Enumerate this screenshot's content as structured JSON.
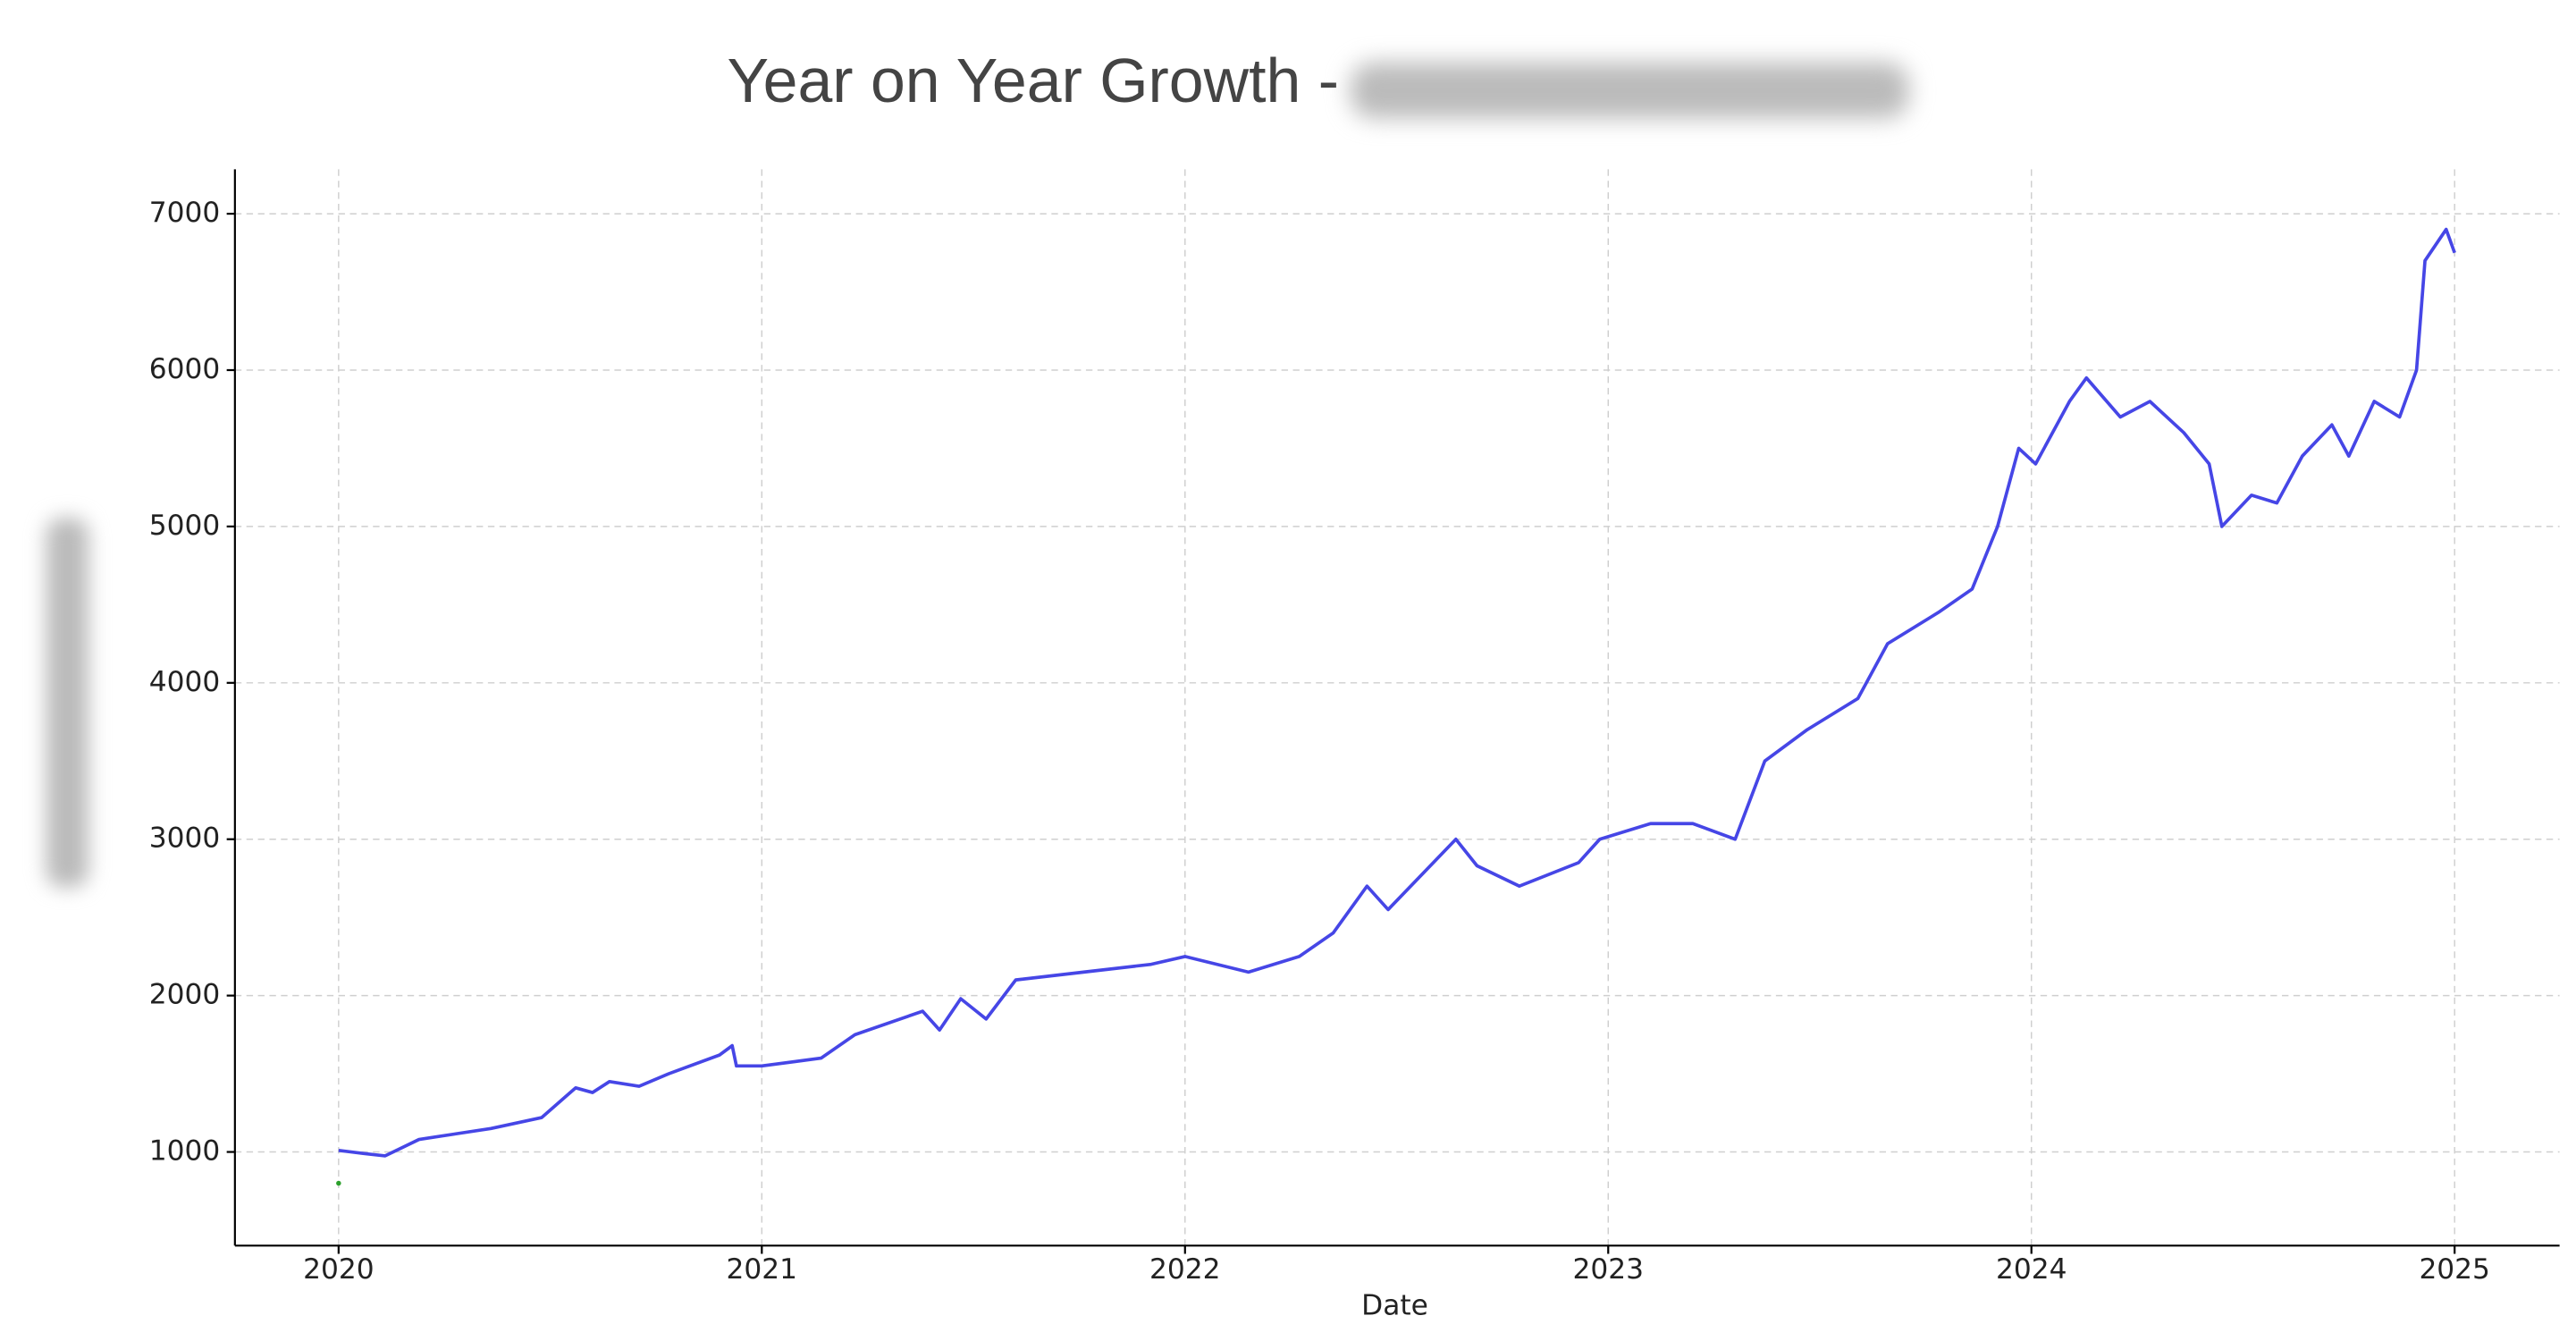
{
  "chart_data": {
    "type": "line",
    "title": "Year on Year Growth -",
    "x_label": "Date",
    "xlim": [
      2019.755,
      2025.248
    ],
    "xticks": [
      2020,
      2021,
      2022,
      2023,
      2024,
      2025
    ],
    "ylim": [
      401,
      7284
    ],
    "yticks": [
      1000,
      2000,
      3000,
      4000,
      5000,
      6000,
      7000
    ],
    "grid": true,
    "series": [
      {
        "color": "#4646e6",
        "x": [
          2020.0,
          2020.06,
          2020.11,
          2020.19,
          2020.36,
          2020.48,
          2020.56,
          2020.6,
          2020.64,
          2020.71,
          2020.78,
          2020.9,
          2020.93,
          2020.94,
          2021.0,
          2021.14,
          2021.22,
          2021.38,
          2021.42,
          2021.47,
          2021.53,
          2021.6,
          2021.76,
          2021.92,
          2022.0,
          2022.15,
          2022.27,
          2022.35,
          2022.43,
          2022.48,
          2022.64,
          2022.69,
          2022.79,
          2022.93,
          2022.98,
          2023.1,
          2023.2,
          2023.3,
          2023.37,
          2023.47,
          2023.59,
          2023.66,
          2023.78,
          2023.86,
          2023.92,
          2023.97,
          2024.01,
          2024.09,
          2024.13,
          2024.21,
          2024.28,
          2024.36,
          2024.42,
          2024.45,
          2024.52,
          2024.58,
          2024.64,
          2024.71,
          2024.75,
          2024.81,
          2024.87,
          2024.91,
          2024.93,
          2024.98,
          2025.0
        ],
        "values": [
          1010,
          990,
          975,
          1080,
          1150,
          1220,
          1410,
          1380,
          1450,
          1420,
          1500,
          1620,
          1680,
          1550,
          1550,
          1600,
          1750,
          1900,
          1780,
          1980,
          1850,
          2100,
          2150,
          2200,
          2250,
          2150,
          2250,
          2400,
          2700,
          2550,
          3000,
          2830,
          2700,
          2850,
          3000,
          3100,
          3100,
          3000,
          3500,
          3700,
          3900,
          4250,
          4450,
          4600,
          5000,
          5500,
          5400,
          5800,
          5950,
          5700,
          5800,
          5600,
          5400,
          5000,
          5200,
          5150,
          5450,
          5650,
          5450,
          5800,
          5700,
          6000,
          6700,
          6900,
          6750
        ]
      },
      {
        "color": "#2ca02c",
        "x": [
          2020.0
        ],
        "values": [
          800
        ]
      }
    ]
  }
}
